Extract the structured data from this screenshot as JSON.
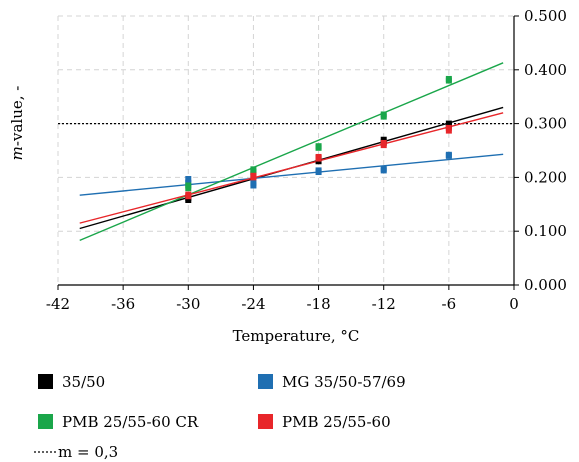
{
  "chart_data": {
    "type": "scatter",
    "title": "",
    "xlabel": "Temperature, °C",
    "ylabel_italic": "m",
    "ylabel_rest": "-value, -",
    "xlim": [
      -42,
      0
    ],
    "ylim": [
      0,
      0.5
    ],
    "xticks": [
      -42,
      -36,
      -30,
      -24,
      -18,
      -12,
      -6,
      0
    ],
    "xtick_labels": [
      "-42",
      "-36",
      "-30",
      "-24",
      "-18",
      "-12",
      "-6",
      "0"
    ],
    "yticks": [
      0,
      0.1,
      0.2,
      0.3,
      0.4,
      0.5
    ],
    "ytick_labels": [
      "0.000",
      "0.100",
      "0.200",
      "0.300",
      "0.400",
      "0.500"
    ],
    "y_axis_position": "right",
    "grid": true,
    "legend_position": "bottom",
    "reference_line": {
      "y": 0.3,
      "style": "dotted",
      "color": "#000000",
      "label": "m = 0,3"
    },
    "series": [
      {
        "name": "35/50",
        "color": "#000000",
        "points": [
          [
            -30,
            0.158
          ],
          [
            -30,
            0.162
          ],
          [
            -24,
            0.205
          ],
          [
            -24,
            0.21
          ],
          [
            -18,
            0.23
          ],
          [
            -18,
            0.236
          ],
          [
            -12,
            0.265
          ],
          [
            -12,
            0.27
          ],
          [
            -6,
            0.295
          ],
          [
            -6,
            0.3
          ]
        ],
        "trend": {
          "x_start": -40,
          "x_end": -1,
          "y_start": 0.105,
          "y_end": 0.33
        }
      },
      {
        "name": "MG 35/50-57/69",
        "color": "#1f6fb2",
        "points": [
          [
            -30,
            0.19
          ],
          [
            -30,
            0.197
          ],
          [
            -24,
            0.185
          ],
          [
            -24,
            0.19
          ],
          [
            -18,
            0.21
          ],
          [
            -18,
            0.213
          ],
          [
            -12,
            0.213
          ],
          [
            -12,
            0.216
          ],
          [
            -6,
            0.24
          ],
          [
            -6,
            0.242
          ]
        ],
        "trend": {
          "x_start": -40,
          "x_end": -1,
          "y_start": 0.167,
          "y_end": 0.243
        }
      },
      {
        "name": "PMB 25/55-60 CR",
        "color": "#1aa64a",
        "points": [
          [
            -30,
            0.18
          ],
          [
            -30,
            0.185
          ],
          [
            -24,
            0.21
          ],
          [
            -24,
            0.215
          ],
          [
            -18,
            0.255
          ],
          [
            -18,
            0.258
          ],
          [
            -12,
            0.313
          ],
          [
            -12,
            0.317
          ],
          [
            -6,
            0.38
          ],
          [
            -6,
            0.383
          ]
        ],
        "trend": {
          "x_start": -40,
          "x_end": -1,
          "y_start": 0.083,
          "y_end": 0.413
        }
      },
      {
        "name": "PMB 25/55-60",
        "color": "#e8262a",
        "points": [
          [
            -30,
            0.165
          ],
          [
            -30,
            0.168
          ],
          [
            -24,
            0.2
          ],
          [
            -24,
            0.203
          ],
          [
            -18,
            0.235
          ],
          [
            -18,
            0.238
          ],
          [
            -12,
            0.26
          ],
          [
            -12,
            0.264
          ],
          [
            -6,
            0.287
          ],
          [
            -6,
            0.292
          ]
        ],
        "trend": {
          "x_start": -40,
          "x_end": -1,
          "y_start": 0.115,
          "y_end": 0.32
        }
      }
    ]
  }
}
